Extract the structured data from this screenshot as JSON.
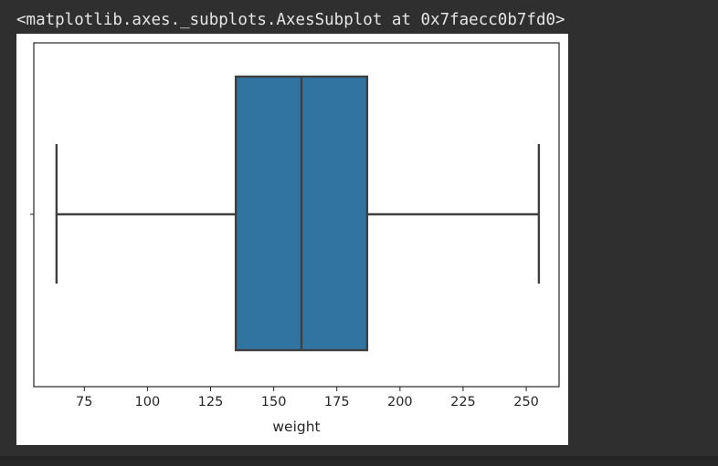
{
  "output": {
    "repr_text": "<matplotlib.axes._subplots.AxesSubplot at 0x7faecc0b7fd0>"
  },
  "colors": {
    "background": "#2f2f2f",
    "figure": "#ffffff",
    "box_fill": "#3274a1",
    "line": "#3f3f3f"
  },
  "chart_data": {
    "type": "box",
    "orientation": "horizontal",
    "title": "",
    "xlabel": "weight",
    "ylabel": "",
    "xlim": [
      55,
      263
    ],
    "xticks": [
      75,
      100,
      125,
      150,
      175,
      200,
      225,
      250
    ],
    "xtick_labels": [
      "75",
      "100",
      "125",
      "150",
      "175",
      "200",
      "225",
      "250"
    ],
    "grid": false,
    "box": {
      "whisker_low": 64,
      "q1": 135,
      "median": 161,
      "q3": 187,
      "whisker_high": 255
    }
  }
}
